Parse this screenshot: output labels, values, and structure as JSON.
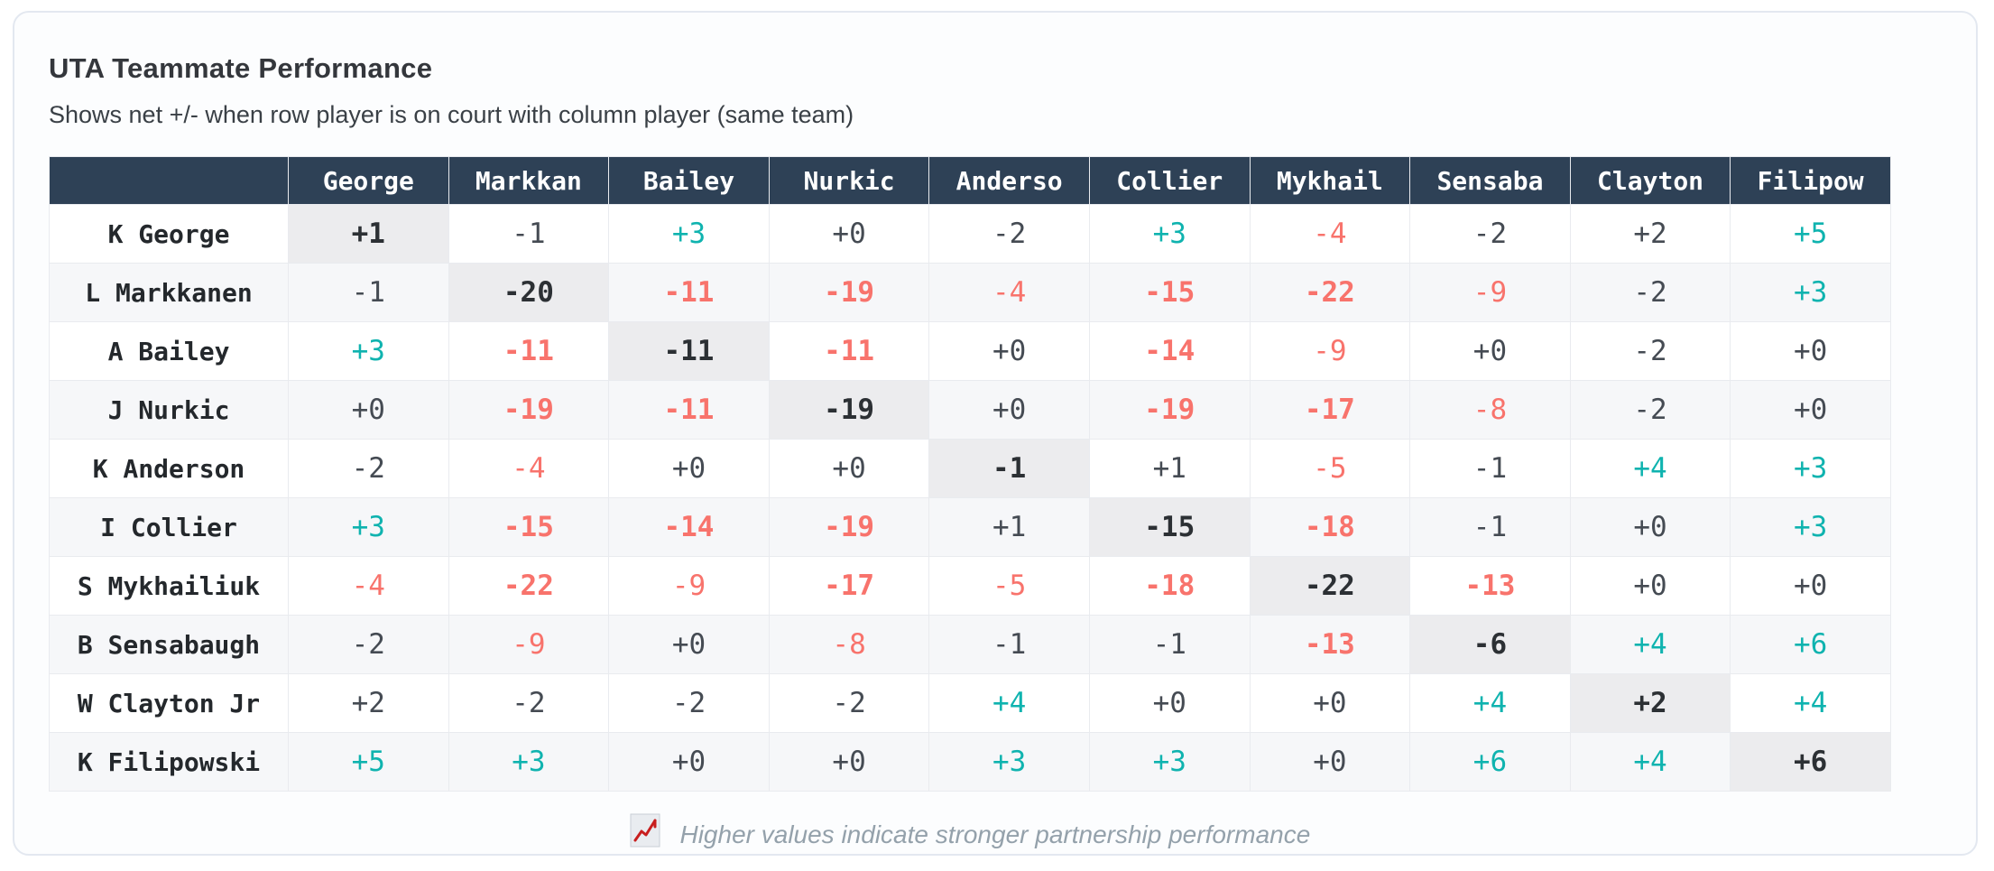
{
  "card": {
    "title": "UTA Teammate Performance",
    "subtitle": "Shows net +/- when row player is on court with column player (same team)",
    "footer_note": "Higher values indicate stronger partnership performance",
    "footer_icon": "trend-chart-icon"
  },
  "colors": {
    "header_bg": "#2e4156",
    "positive": "#0fb3af",
    "negative": "#f8736c",
    "neutral": "#454b53",
    "diagonal_bg": "#ececee",
    "stripe_bg": "#f6f7f9",
    "card_border": "#e3e8f0"
  },
  "chart_data": {
    "type": "heatmap",
    "title": "UTA Teammate Performance",
    "subtitle": "Shows net +/- when row player is on court with column player (same team)",
    "value_format": "signed integer, zeros shown as +0",
    "columns": [
      "George",
      "Markkan",
      "Bailey",
      "Nurkic",
      "Anderso",
      "Collier",
      "Mykhail",
      "Sensaba",
      "Clayton",
      "Filipow"
    ],
    "rows": [
      {
        "label": "K George",
        "values": [
          1,
          -1,
          3,
          0,
          -2,
          3,
          -4,
          -2,
          2,
          5
        ]
      },
      {
        "label": "L Markkanen",
        "values": [
          -1,
          -20,
          -11,
          -19,
          -4,
          -15,
          -22,
          -9,
          -2,
          3
        ]
      },
      {
        "label": "A Bailey",
        "values": [
          3,
          -11,
          -11,
          -11,
          0,
          -14,
          -9,
          0,
          -2,
          0
        ]
      },
      {
        "label": "J Nurkic",
        "values": [
          0,
          -19,
          -11,
          -19,
          0,
          -19,
          -17,
          -8,
          -2,
          0
        ]
      },
      {
        "label": "K Anderson",
        "values": [
          -2,
          -4,
          0,
          0,
          -1,
          1,
          -5,
          -1,
          4,
          3
        ]
      },
      {
        "label": "I Collier",
        "values": [
          3,
          -15,
          -14,
          -19,
          1,
          -15,
          -18,
          -1,
          0,
          3
        ]
      },
      {
        "label": "S Mykhailiuk",
        "values": [
          -4,
          -22,
          -9,
          -17,
          -5,
          -18,
          -22,
          -13,
          0,
          0
        ]
      },
      {
        "label": "B Sensabaugh",
        "values": [
          -2,
          -9,
          0,
          -8,
          -1,
          -1,
          -13,
          -6,
          4,
          6
        ]
      },
      {
        "label": "W Clayton Jr",
        "values": [
          2,
          -2,
          -2,
          -2,
          4,
          0,
          0,
          4,
          2,
          4
        ]
      },
      {
        "label": "K Filipowski",
        "values": [
          5,
          3,
          0,
          0,
          3,
          3,
          0,
          6,
          4,
          6
        ]
      }
    ],
    "legend": "Higher values indicate stronger partnership performance",
    "style_rules": {
      "positive_color_threshold": 3,
      "negative_color_threshold": -3,
      "bold_abs_threshold": 10,
      "diagonal": "dark bold text on gray background"
    }
  }
}
